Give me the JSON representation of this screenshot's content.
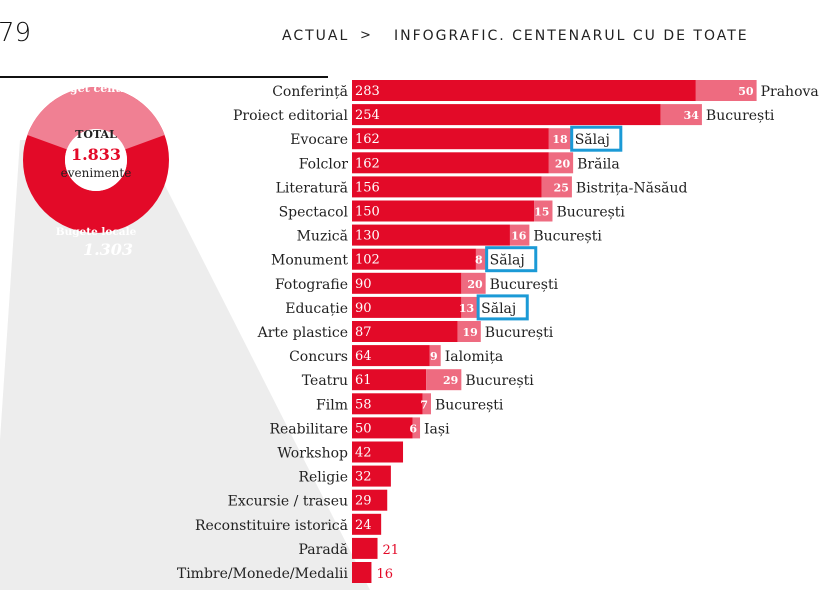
{
  "header": {
    "page_number": "79",
    "breadcrumb_home": "ACTUAL",
    "breadcrumb_separator": ">",
    "breadcrumb_current": "INFOGRAFIC. CENTENARUL CU DE TOATE"
  },
  "donut": {
    "top_label": "Buget central",
    "center_title": "TOTAL",
    "center_value": "1.833",
    "center_unit": "evenimente",
    "bottom_label": "Bugete locale",
    "bottom_value": "1.303"
  },
  "colors": {
    "bar_main": "#e30a28",
    "bar_secondary": "#ee6b80",
    "highlight_box": "#1b9ad6",
    "donut_light": "#f08093"
  },
  "chart_data": {
    "type": "bar",
    "orientation": "horizontal",
    "categories": [
      "Conferință",
      "Proiect editorial",
      "Evocare",
      "Folclor",
      "Literatură",
      "Spectacol",
      "Muzică",
      "Monument",
      "Fotografie",
      "Educație",
      "Arte plastice",
      "Concurs",
      "Teatru",
      "Film",
      "Reabilitare",
      "Workshop",
      "Religie",
      "Excursie / traseu",
      "Reconstituire istorică",
      "Paradă",
      "Timbre/Monede/Medalii"
    ],
    "series": [
      {
        "values": [
          283,
          254,
          162,
          162,
          156,
          150,
          130,
          102,
          90,
          90,
          87,
          64,
          61,
          58,
          50,
          42,
          32,
          29,
          24,
          21,
          16
        ]
      },
      {
        "values": [
          50,
          34,
          18,
          20,
          25,
          15,
          16,
          8,
          20,
          13,
          19,
          9,
          29,
          7,
          6,
          null,
          null,
          null,
          null,
          null,
          null
        ]
      }
    ],
    "county_labels": [
      "Prahova",
      "București",
      "Sălaj",
      "Brăila",
      "Bistrița-Năsăud",
      "București",
      "București",
      "Sălaj",
      "București",
      "Sălaj",
      "București",
      "Ialomița",
      "București",
      "București",
      "Iași",
      "",
      "",
      "",
      "",
      "",
      ""
    ],
    "highlighted": [
      "Evocare",
      "Monument",
      "Educație"
    ]
  }
}
